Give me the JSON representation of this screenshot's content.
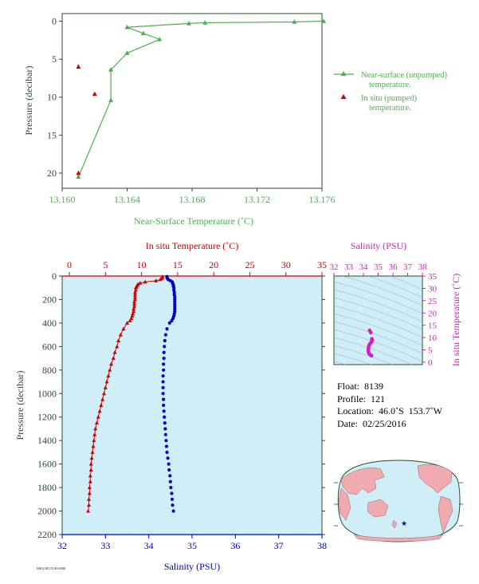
{
  "colors": {
    "near_surface": "#4caf50",
    "in_situ": "#d00000",
    "salinity": "#0000c8",
    "ts_diagram": "#d020c0",
    "profile_panel_bg": "#cfeef8",
    "axis_dark": "#2c4a2c"
  },
  "chart_data": [
    {
      "id": "near_surface",
      "type": "line",
      "xlabel": "Near-Surface Temperature (˚C)",
      "ylabel": "Pressure (decibar)",
      "xlim": [
        13.16,
        13.176
      ],
      "ylim": [
        22,
        -1
      ],
      "xticks": [
        "13.160",
        "13.164",
        "13.168",
        "13.172",
        "13.176"
      ],
      "yticks": [
        "0",
        "5",
        "10",
        "15",
        "20"
      ],
      "series": [
        {
          "name": "Near-surface (unpumped) temperature.",
          "x": [
            13.1761,
            13.1743,
            13.1688,
            13.1678,
            13.164,
            13.165,
            13.166,
            13.164,
            13.163,
            13.163,
            13.161
          ],
          "y": [
            0.0,
            0.1,
            0.2,
            0.3,
            0.8,
            1.6,
            2.4,
            4.2,
            6.4,
            10.4,
            20.5
          ]
        },
        {
          "name": "In situ (pumped) temperature.",
          "x": [
            13.161,
            13.162,
            13.161
          ],
          "y": [
            6.0,
            9.6,
            20.0
          ]
        }
      ]
    },
    {
      "id": "profile",
      "type": "scatter",
      "xlabel_top": "In situ Temperature (˚C)",
      "xlabel_bottom": "Salinity (PSU)",
      "ylabel": "Pressure (decibar)",
      "temp_lim": [
        -1,
        35
      ],
      "sal_lim": [
        32,
        38
      ],
      "ylim": [
        0,
        2200
      ],
      "temp_ticks": [
        "0",
        "5",
        "10",
        "15",
        "20",
        "25",
        "30",
        "35"
      ],
      "sal_ticks": [
        "32",
        "33",
        "34",
        "35",
        "36",
        "37",
        "38"
      ],
      "yticks": [
        "0",
        "200",
        "400",
        "600",
        "800",
        "1000",
        "1200",
        "1400",
        "1600",
        "1800",
        "2000",
        "2200"
      ],
      "series": [
        {
          "name": "In situ Temperature",
          "pressure": [
            5,
            10,
            20,
            30,
            40,
            50,
            60,
            70,
            80,
            90,
            100,
            120,
            140,
            160,
            180,
            200,
            220,
            240,
            260,
            280,
            300,
            320,
            340,
            360,
            380,
            400,
            450,
            500,
            550,
            600,
            650,
            700,
            750,
            800,
            850,
            900,
            950,
            1000,
            1050,
            1100,
            1150,
            1200,
            1250,
            1300,
            1350,
            1400,
            1450,
            1500,
            1550,
            1600,
            1650,
            1700,
            1750,
            1800,
            1850,
            1900,
            1950,
            2000
          ],
          "values": [
            12.9,
            12.9,
            12.8,
            12.6,
            12.0,
            10.5,
            9.8,
            9.5,
            9.4,
            9.3,
            9.2,
            9.2,
            9.1,
            9.1,
            9.1,
            9.1,
            9.0,
            9.0,
            9.0,
            8.9,
            8.9,
            8.8,
            8.7,
            8.6,
            8.4,
            8.0,
            7.5,
            7.1,
            6.8,
            6.6,
            6.3,
            6.1,
            5.8,
            5.6,
            5.4,
            5.2,
            5.0,
            4.8,
            4.6,
            4.4,
            4.2,
            4.0,
            3.8,
            3.6,
            3.5,
            3.4,
            3.3,
            3.2,
            3.1,
            3.0,
            3.0,
            2.9,
            2.9,
            2.8,
            2.8,
            2.7,
            2.7,
            2.6
          ]
        },
        {
          "name": "Salinity",
          "pressure": [
            5,
            10,
            20,
            30,
            40,
            50,
            60,
            70,
            80,
            90,
            100,
            120,
            140,
            160,
            180,
            200,
            220,
            240,
            260,
            280,
            300,
            320,
            340,
            360,
            380,
            400,
            450,
            500,
            550,
            600,
            650,
            700,
            750,
            800,
            850,
            900,
            950,
            1000,
            1050,
            1100,
            1150,
            1200,
            1250,
            1300,
            1350,
            1400,
            1450,
            1500,
            1550,
            1600,
            1650,
            1700,
            1750,
            1800,
            1850,
            1900,
            1950,
            2000
          ],
          "values": [
            34.42,
            34.42,
            34.43,
            34.45,
            34.5,
            34.54,
            34.55,
            34.56,
            34.57,
            34.57,
            34.58,
            34.58,
            34.59,
            34.59,
            34.6,
            34.6,
            34.6,
            34.6,
            34.6,
            34.6,
            34.6,
            34.59,
            34.58,
            34.56,
            34.53,
            34.48,
            34.42,
            34.39,
            34.37,
            34.36,
            34.35,
            34.35,
            34.34,
            34.34,
            34.33,
            34.33,
            34.33,
            34.33,
            34.34,
            34.34,
            34.35,
            34.36,
            34.37,
            34.38,
            34.39,
            34.4,
            34.41,
            34.42,
            34.44,
            34.46,
            34.47,
            34.49,
            34.5,
            34.51,
            34.53,
            34.54,
            34.55,
            34.57
          ]
        }
      ]
    },
    {
      "id": "ts",
      "type": "scatter",
      "xlabel": "Salinity (PSU)",
      "ylabel": "In situ Temperature (˚C)",
      "xlim": [
        32,
        38
      ],
      "ylim": [
        -1,
        35
      ],
      "xticks": [
        "32",
        "33",
        "34",
        "35",
        "36",
        "37",
        "38"
      ],
      "yticks": [
        "0",
        "5",
        "10",
        "15",
        "20",
        "25",
        "30",
        "35"
      ],
      "points_s": [
        34.42,
        34.5,
        34.57,
        34.6,
        34.6,
        34.58,
        34.53,
        34.45,
        34.4,
        34.37,
        34.35,
        34.34,
        34.33,
        34.33,
        34.35,
        34.38,
        34.41,
        34.45,
        34.5,
        34.55
      ],
      "points_t": [
        12.9,
        12.0,
        9.5,
        9.1,
        9.0,
        8.7,
        8.0,
        7.5,
        7.0,
        6.6,
        6.0,
        5.5,
        5.0,
        4.5,
        4.0,
        3.6,
        3.3,
        3.0,
        2.8,
        2.6
      ]
    }
  ],
  "float_info": {
    "float": "Float:  8139",
    "profile": "Profile:  121",
    "location": "Location:  46.0˚S  153.7˚W",
    "date": "Date:  02/25/2016"
  },
  "map": {
    "marker_icon": "star-icon"
  },
  "footer": {
    "code": "ARGOFLT0.R-0000"
  }
}
